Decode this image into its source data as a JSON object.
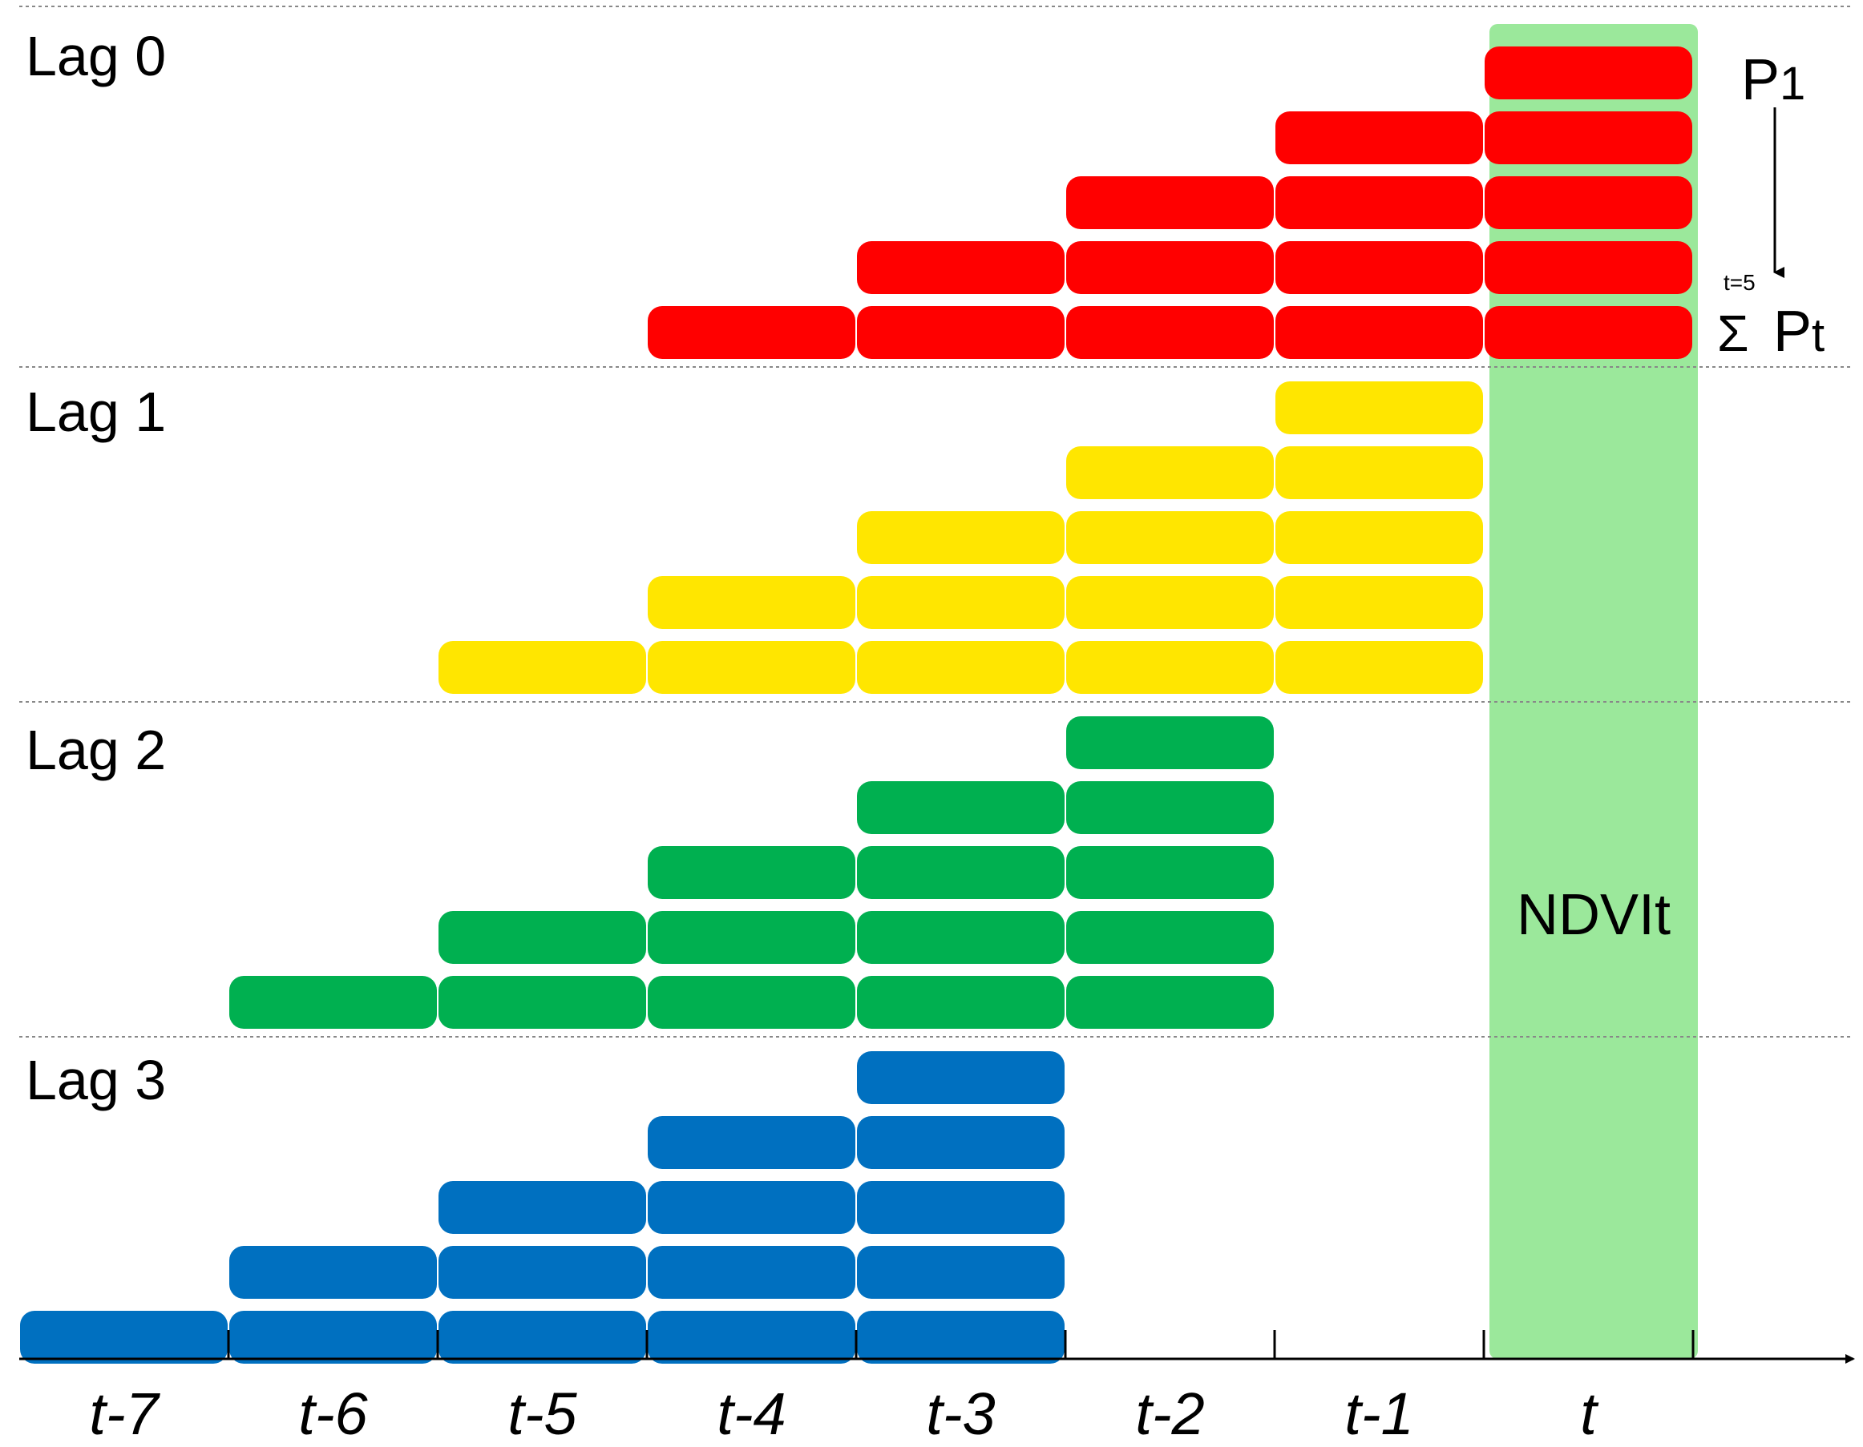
{
  "diagram": {
    "colors": {
      "lag0": "#ff0000",
      "lag1": "#ffe600",
      "lag2": "#00b050",
      "lag3": "#0070c0",
      "ndvi_column": "#9be89b",
      "separator": "#888888",
      "axis": "#000000"
    },
    "lags": [
      {
        "label": "Lag 0",
        "color_key": "lag0",
        "lag": 0
      },
      {
        "label": "Lag 1",
        "color_key": "lag1",
        "lag": 1
      },
      {
        "label": "Lag 2",
        "color_key": "lag2",
        "lag": 2
      },
      {
        "label": "Lag 3",
        "color_key": "lag3",
        "lag": 3
      }
    ],
    "window_lengths": [
      1,
      2,
      3,
      4,
      5
    ],
    "time_axis": {
      "ticks": [
        "t-7",
        "t-6",
        "t-5",
        "t-4",
        "t-3",
        "t-2",
        "t-1",
        "t"
      ],
      "arrow_icon": "arrow-right-icon"
    },
    "ndvi_label": "NDVIt",
    "annotations": {
      "p1": {
        "base": "P",
        "sub": "1"
      },
      "sum": {
        "sign": "Σ",
        "index": "t=5",
        "base": "P",
        "sub": "t"
      },
      "arrow_icon": "arrow-down-icon"
    }
  }
}
